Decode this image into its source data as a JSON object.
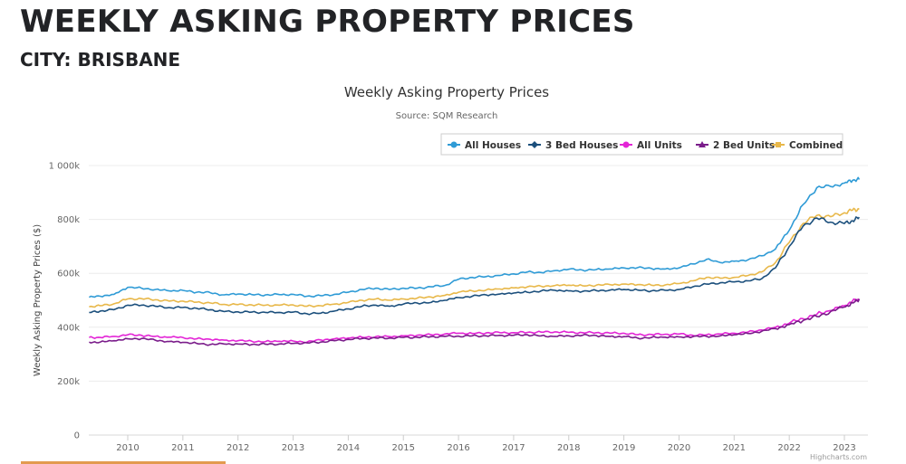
{
  "header": {
    "title": "WEEKLY ASKING PROPERTY PRICES",
    "subtitle": "CITY: BRISBANE"
  },
  "credits": "Highcharts.com",
  "chart_data": {
    "type": "line",
    "title": "Weekly Asking Property Prices",
    "subtitle": "Source: SQM Research",
    "xlabel": "",
    "ylabel": "Weekly Asking Property Prices ($)",
    "xlim": [
      2009.3,
      2023.35
    ],
    "ylim": [
      0,
      1000000
    ],
    "grid": true,
    "legend_position": "top-right",
    "x_ticks": [
      2010,
      2011,
      2012,
      2013,
      2014,
      2015,
      2016,
      2017,
      2018,
      2019,
      2020,
      2021,
      2022,
      2023
    ],
    "x_tick_labels": [
      "2010",
      "2011",
      "2012",
      "2013",
      "2014",
      "2015",
      "2016",
      "2017",
      "2018",
      "2019",
      "2020",
      "2021",
      "2022",
      "2023"
    ],
    "y_ticks": [
      0,
      200000,
      400000,
      600000,
      800000,
      1000000
    ],
    "y_tick_labels": [
      "0",
      "200k",
      "400k",
      "600k",
      "800k",
      "1 000k"
    ],
    "x": [
      2009.3,
      2009.5,
      2009.75,
      2010.0,
      2010.25,
      2010.5,
      2010.75,
      2011.0,
      2011.25,
      2011.5,
      2011.75,
      2012.0,
      2012.25,
      2012.5,
      2012.75,
      2013.0,
      2013.25,
      2013.5,
      2013.75,
      2014.0,
      2014.25,
      2014.5,
      2014.75,
      2015.0,
      2015.25,
      2015.5,
      2015.75,
      2016.0,
      2016.25,
      2016.5,
      2016.75,
      2017.0,
      2017.25,
      2017.5,
      2017.75,
      2018.0,
      2018.25,
      2018.5,
      2018.75,
      2019.0,
      2019.25,
      2019.5,
      2019.75,
      2020.0,
      2020.25,
      2020.5,
      2020.75,
      2021.0,
      2021.25,
      2021.5,
      2021.75,
      2022.0,
      2022.25,
      2022.5,
      2022.75,
      2023.0,
      2023.15,
      2023.27
    ],
    "series": [
      {
        "name": "All Houses",
        "color": "#2f9bd6",
        "marker": "circle",
        "values": [
          511000,
          515000,
          522000,
          548000,
          545000,
          540000,
          535000,
          537000,
          530000,
          528000,
          520000,
          523000,
          521000,
          520000,
          521000,
          522000,
          515000,
          517000,
          522000,
          530000,
          540000,
          545000,
          540000,
          545000,
          545000,
          550000,
          555000,
          578000,
          585000,
          588000,
          592000,
          598000,
          605000,
          603000,
          610000,
          615000,
          612000,
          614000,
          616000,
          620000,
          621000,
          618000,
          616000,
          620000,
          635000,
          652000,
          640000,
          645000,
          650000,
          665000,
          690000,
          760000,
          855000,
          918000,
          922000,
          935000,
          945000,
          948000
        ]
      },
      {
        "name": "3 Bed Houses",
        "color": "#1b4f7c",
        "marker": "diamond",
        "values": [
          455000,
          460000,
          465000,
          482000,
          482000,
          478000,
          473000,
          473000,
          470000,
          465000,
          458000,
          457000,
          456000,
          455000,
          455000,
          456000,
          450000,
          452000,
          460000,
          468000,
          478000,
          482000,
          478000,
          486000,
          490000,
          492000,
          500000,
          510000,
          515000,
          520000,
          523000,
          527000,
          530000,
          535000,
          537000,
          535000,
          533000,
          536000,
          538000,
          540000,
          538000,
          535000,
          537000,
          540000,
          550000,
          560000,
          565000,
          568000,
          572000,
          580000,
          620000,
          700000,
          775000,
          805000,
          790000,
          785000,
          795000,
          808000
        ]
      },
      {
        "name": "All Units",
        "color": "#e324d6",
        "marker": "circle",
        "values": [
          362000,
          362000,
          366000,
          372000,
          370000,
          366000,
          363000,
          362000,
          357000,
          355000,
          352000,
          350000,
          348000,
          347000,
          348000,
          349000,
          345000,
          353000,
          357000,
          360000,
          363000,
          365000,
          365000,
          368000,
          370000,
          372000,
          375000,
          378000,
          377000,
          379000,
          380000,
          380000,
          381000,
          382000,
          383000,
          381000,
          380000,
          380000,
          378000,
          378000,
          372000,
          373000,
          374000,
          375000,
          370000,
          372000,
          375000,
          378000,
          382000,
          390000,
          400000,
          415000,
          432000,
          448000,
          462000,
          480000,
          498000,
          500000
        ]
      },
      {
        "name": "2 Bed Units",
        "color": "#7a1c8a",
        "marker": "triangle",
        "values": [
          345000,
          345000,
          350000,
          357000,
          358000,
          352000,
          347000,
          344000,
          340000,
          336000,
          338000,
          338000,
          336000,
          337000,
          338000,
          340000,
          342000,
          345000,
          350000,
          355000,
          358000,
          360000,
          360000,
          362000,
          363000,
          365000,
          366000,
          367000,
          368000,
          368000,
          370000,
          370000,
          372000,
          368000,
          366000,
          368000,
          370000,
          369000,
          366000,
          365000,
          360000,
          362000,
          363000,
          364000,
          365000,
          366000,
          368000,
          372000,
          377000,
          385000,
          395000,
          410000,
          425000,
          440000,
          458000,
          475000,
          490000,
          505000
        ]
      },
      {
        "name": "Combined",
        "color": "#e8b84a",
        "marker": "square",
        "values": [
          476000,
          480000,
          487000,
          505000,
          506000,
          502000,
          497000,
          497000,
          493000,
          490000,
          485000,
          484000,
          483000,
          482000,
          482000,
          483000,
          478000,
          480000,
          486000,
          492000,
          500000,
          505000,
          500000,
          505000,
          508000,
          512000,
          518000,
          530000,
          535000,
          538000,
          542000,
          546000,
          550000,
          552000,
          555000,
          556000,
          554000,
          556000,
          558000,
          560000,
          558000,
          556000,
          557000,
          562000,
          572000,
          585000,
          582000,
          585000,
          592000,
          605000,
          640000,
          715000,
          785000,
          815000,
          810000,
          825000,
          835000,
          838000
        ]
      }
    ]
  }
}
